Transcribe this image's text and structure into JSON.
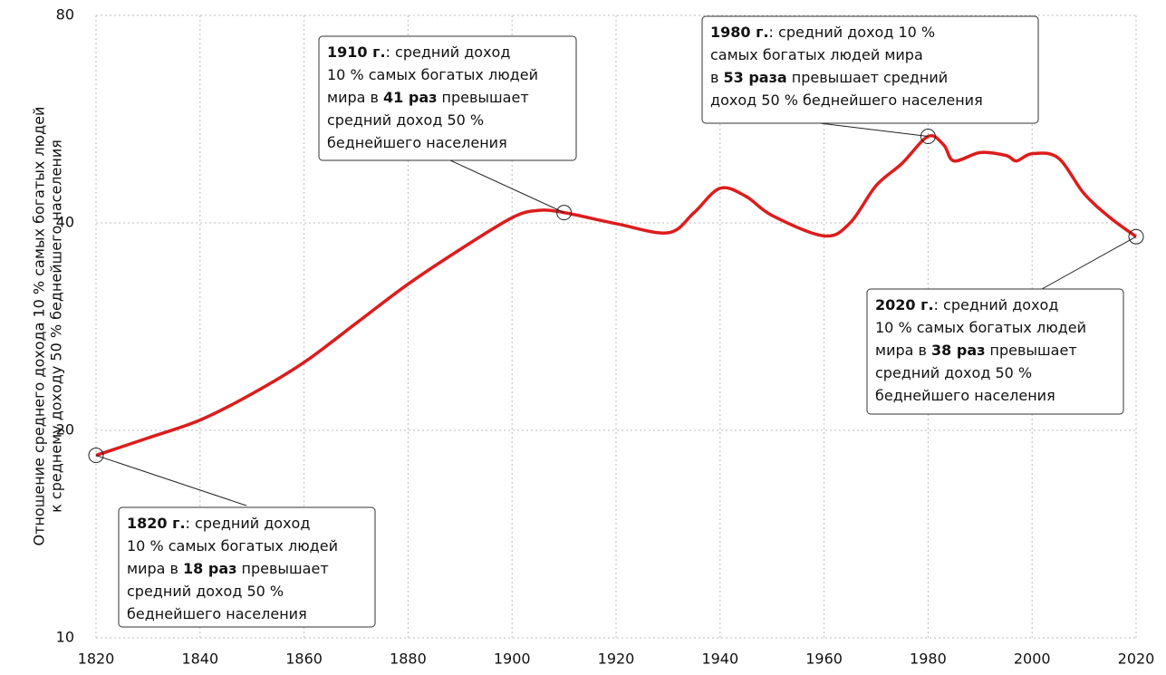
{
  "chart_data": {
    "type": "line",
    "y_label": [
      "Отношение среднего дохода 10 % самых богатых людей",
      "к среднему доходу 50 % беднейшего населения"
    ],
    "x": [
      1820,
      1830,
      1840,
      1850,
      1860,
      1870,
      1880,
      1890,
      1900,
      1905,
      1910,
      1920,
      1930,
      1935,
      1940,
      1945,
      1950,
      1960,
      1965,
      1970,
      1975,
      1980,
      1983,
      1985,
      1990,
      1995,
      1997,
      2000,
      2005,
      2010,
      2015,
      2020
    ],
    "series": [
      {
        "color": "#dd1c1c",
        "values": [
          18.4,
          19.5,
          20.7,
          22.6,
          25.1,
          28.6,
          32.6,
          36.6,
          40.7,
          41.7,
          41.4,
          39.9,
          38.7,
          41.4,
          44.9,
          43.7,
          41.0,
          38.3,
          40.0,
          45.3,
          48.8,
          53.4,
          51.9,
          49.2,
          50.6,
          50.1,
          49.2,
          50.4,
          49.7,
          44.1,
          40.7,
          38.2
        ]
      }
    ],
    "xlim": [
      1820,
      2020
    ],
    "xticks": [
      1820,
      1840,
      1860,
      1880,
      1900,
      1920,
      1940,
      1960,
      1980,
      2000,
      2020
    ],
    "ylim": [
      10,
      80
    ],
    "yticks": [
      10,
      20,
      40,
      80
    ],
    "log_y": true,
    "grid": true,
    "annotations": [
      {
        "x": 1910,
        "y": 41.4,
        "lines": [
          [
            {
              "t": "1910 г.",
              "b": true
            },
            {
              "t": ": средний доход"
            }
          ],
          [
            {
              "t": "10 % самых богатых людей"
            }
          ],
          [
            {
              "t": "мира в "
            },
            {
              "t": "41 раз",
              "b": true
            },
            {
              "t": " превышает"
            }
          ],
          [
            {
              "t": "средний доход 50 %"
            }
          ],
          [
            {
              "t": "беднейшего населения"
            }
          ]
        ]
      },
      {
        "x": 1980,
        "y": 53.4,
        "lines": [
          [
            {
              "t": "1980 г.",
              "b": true
            },
            {
              "t": ": средний доход 10 %"
            }
          ],
          [
            {
              "t": "самых богатых людей мира"
            }
          ],
          [
            {
              "t": "в "
            },
            {
              "t": "53 раза",
              "b": true
            },
            {
              "t": " превышает средний"
            }
          ],
          [
            {
              "t": "доход 50 % беднейшего населения"
            }
          ]
        ]
      },
      {
        "x": 2020,
        "y": 38.2,
        "lines": [
          [
            {
              "t": "2020 г.",
              "b": true
            },
            {
              "t": ": средний доход"
            }
          ],
          [
            {
              "t": "10 % самых богатых людей"
            }
          ],
          [
            {
              "t": "мира в "
            },
            {
              "t": "38 раз",
              "b": true
            },
            {
              "t": " превышает"
            }
          ],
          [
            {
              "t": "средний доход 50 %"
            }
          ],
          [
            {
              "t": "беднейшего населения"
            }
          ]
        ]
      },
      {
        "x": 1820,
        "y": 18.4,
        "lines": [
          [
            {
              "t": "1820 г.",
              "b": true
            },
            {
              "t": ": средний доход"
            }
          ],
          [
            {
              "t": "10 % самых богатых людей"
            }
          ],
          [
            {
              "t": "мира в "
            },
            {
              "t": "18 раз",
              "b": true
            },
            {
              "t": " превышает"
            }
          ],
          [
            {
              "t": "средний доход 50 %"
            }
          ],
          [
            {
              "t": "беднейшего населения"
            }
          ]
        ]
      }
    ]
  }
}
